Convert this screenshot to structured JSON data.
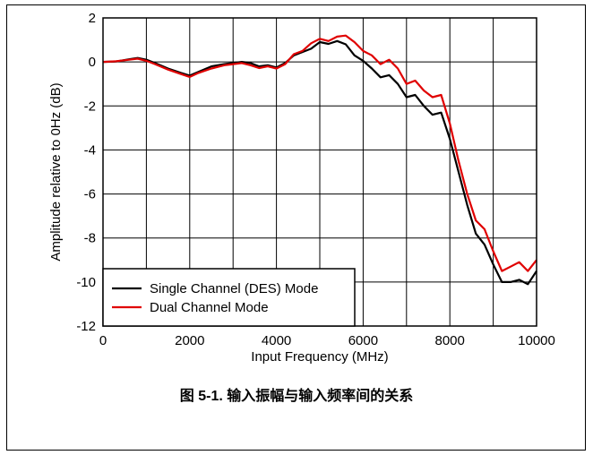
{
  "chart_data": {
    "type": "line",
    "xlabel": "Input Frequency (MHz)",
    "ylabel": "Amplitude relative to 0Hz (dB)",
    "xlim": [
      0,
      10000
    ],
    "ylim": [
      -12,
      2
    ],
    "x_ticks": [
      0,
      2000,
      4000,
      6000,
      8000,
      10000
    ],
    "y_ticks": [
      2,
      0,
      -2,
      -4,
      -6,
      -8,
      -10,
      -12
    ],
    "x_gridlines": [
      0,
      1000,
      2000,
      3000,
      4000,
      5000,
      6000,
      7000,
      8000,
      9000,
      10000
    ],
    "grid": true,
    "legend_position": "bottom-left",
    "series": [
      {
        "name": "Single Channel (DES) Mode",
        "color": "#000000",
        "points": [
          [
            0,
            0.0
          ],
          [
            300,
            0.02
          ],
          [
            600,
            0.12
          ],
          [
            800,
            0.18
          ],
          [
            1000,
            0.1
          ],
          [
            1200,
            -0.05
          ],
          [
            1500,
            -0.3
          ],
          [
            1800,
            -0.5
          ],
          [
            2000,
            -0.62
          ],
          [
            2200,
            -0.45
          ],
          [
            2500,
            -0.2
          ],
          [
            2800,
            -0.1
          ],
          [
            3000,
            -0.05
          ],
          [
            3200,
            0.0
          ],
          [
            3400,
            -0.05
          ],
          [
            3600,
            -0.2
          ],
          [
            3800,
            -0.15
          ],
          [
            4000,
            -0.25
          ],
          [
            4200,
            -0.05
          ],
          [
            4400,
            0.3
          ],
          [
            4600,
            0.45
          ],
          [
            4800,
            0.6
          ],
          [
            5000,
            0.9
          ],
          [
            5200,
            0.82
          ],
          [
            5400,
            0.95
          ],
          [
            5600,
            0.8
          ],
          [
            5800,
            0.3
          ],
          [
            6000,
            0.05
          ],
          [
            6200,
            -0.3
          ],
          [
            6400,
            -0.7
          ],
          [
            6600,
            -0.6
          ],
          [
            6800,
            -1.0
          ],
          [
            7000,
            -1.6
          ],
          [
            7200,
            -1.5
          ],
          [
            7400,
            -2.0
          ],
          [
            7600,
            -2.4
          ],
          [
            7800,
            -2.3
          ],
          [
            8000,
            -3.5
          ],
          [
            8200,
            -5.0
          ],
          [
            8400,
            -6.5
          ],
          [
            8600,
            -7.8
          ],
          [
            8800,
            -8.3
          ],
          [
            9000,
            -9.2
          ],
          [
            9200,
            -10.0
          ],
          [
            9400,
            -10.0
          ],
          [
            9600,
            -9.9
          ],
          [
            9800,
            -10.1
          ],
          [
            10000,
            -9.5
          ]
        ]
      },
      {
        "name": "Dual Channel Mode",
        "color": "#e00000",
        "points": [
          [
            0,
            0.0
          ],
          [
            300,
            0.03
          ],
          [
            600,
            0.1
          ],
          [
            800,
            0.15
          ],
          [
            1000,
            0.05
          ],
          [
            1200,
            -0.1
          ],
          [
            1500,
            -0.35
          ],
          [
            1800,
            -0.55
          ],
          [
            2000,
            -0.68
          ],
          [
            2200,
            -0.5
          ],
          [
            2500,
            -0.3
          ],
          [
            2800,
            -0.15
          ],
          [
            3000,
            -0.1
          ],
          [
            3200,
            -0.05
          ],
          [
            3400,
            -0.15
          ],
          [
            3600,
            -0.28
          ],
          [
            3800,
            -0.2
          ],
          [
            4000,
            -0.3
          ],
          [
            4200,
            -0.1
          ],
          [
            4400,
            0.35
          ],
          [
            4600,
            0.5
          ],
          [
            4800,
            0.85
          ],
          [
            5000,
            1.05
          ],
          [
            5200,
            0.95
          ],
          [
            5400,
            1.15
          ],
          [
            5600,
            1.2
          ],
          [
            5800,
            0.9
          ],
          [
            6000,
            0.5
          ],
          [
            6200,
            0.3
          ],
          [
            6400,
            -0.1
          ],
          [
            6600,
            0.1
          ],
          [
            6800,
            -0.3
          ],
          [
            7000,
            -1.0
          ],
          [
            7200,
            -0.85
          ],
          [
            7400,
            -1.3
          ],
          [
            7600,
            -1.6
          ],
          [
            7800,
            -1.5
          ],
          [
            8000,
            -2.8
          ],
          [
            8200,
            -4.5
          ],
          [
            8400,
            -6.0
          ],
          [
            8600,
            -7.2
          ],
          [
            8800,
            -7.6
          ],
          [
            9000,
            -8.6
          ],
          [
            9200,
            -9.5
          ],
          [
            9400,
            -9.3
          ],
          [
            9600,
            -9.1
          ],
          [
            9800,
            -9.5
          ],
          [
            10000,
            -9.0
          ]
        ]
      }
    ]
  },
  "caption": "图 5-1. 输入振幅与输入频率间的关系"
}
